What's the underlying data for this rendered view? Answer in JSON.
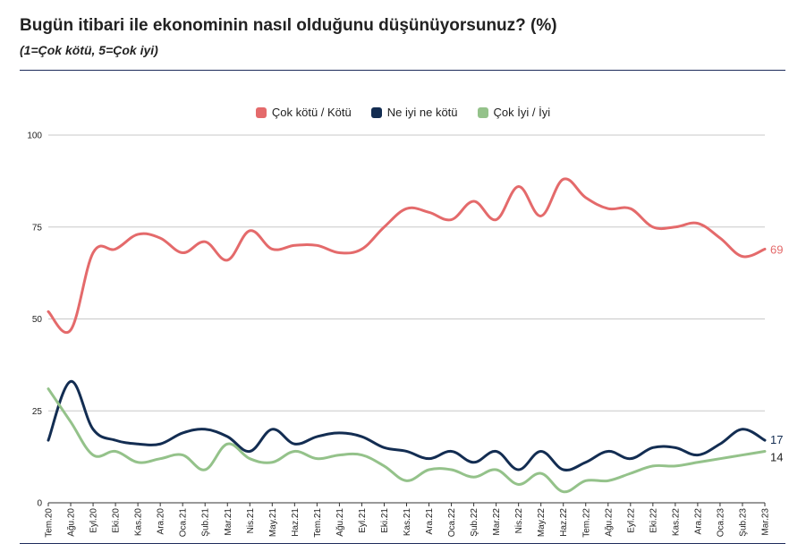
{
  "title": "Bugün itibari ile ekonominin nasıl olduğunu düşünüyorsunuz? (%)",
  "subtitle": "(1=Çok kötü, 5=Çok iyi)",
  "colors": {
    "series0": "#e46a6b",
    "series1": "#132d52",
    "series2": "#94c28a",
    "grid": "#c8c8c8",
    "rule": "#1c2a5a"
  },
  "chart_data": {
    "type": "line",
    "ylim": [
      0,
      100
    ],
    "yticks": [
      "0",
      "25",
      "50",
      "75",
      "100"
    ],
    "grid": true,
    "legend_position": "top-center",
    "categories": [
      "Tem.20",
      "Ağu.20",
      "Eyl.20",
      "Eki.20",
      "Kas.20",
      "Ara.20",
      "Oca.21",
      "Şub.21",
      "Mar.21",
      "Nis.21",
      "May.21",
      "Haz.21",
      "Tem.21",
      "Ağu.21",
      "Eyl.21",
      "Eki.21",
      "Kas.21",
      "Ara.21",
      "Oca.22",
      "Şub.22",
      "Mar.22",
      "Nis.22",
      "May.22",
      "Haz.22",
      "Tem.22",
      "Ağu.22",
      "Eyl.22",
      "Eki.22",
      "Kas.22",
      "Ara.22",
      "Oca.23",
      "Şub.23",
      "Mar.23"
    ],
    "series": [
      {
        "name": "Çok kötü / Kötü",
        "end_label": "69",
        "values": [
          52,
          47,
          68,
          69,
          73,
          72,
          68,
          71,
          66,
          74,
          69,
          70,
          70,
          68,
          69,
          75,
          80,
          79,
          77,
          82,
          77,
          86,
          78,
          88,
          83,
          80,
          80,
          75,
          75,
          76,
          72,
          67,
          69
        ]
      },
      {
        "name": "Ne iyi ne kötü",
        "end_label": "17",
        "values": [
          17,
          33,
          20,
          17,
          16,
          16,
          19,
          20,
          18,
          14,
          20,
          16,
          18,
          19,
          18,
          15,
          14,
          12,
          14,
          11,
          14,
          9,
          14,
          9,
          11,
          14,
          12,
          15,
          15,
          13,
          16,
          20,
          17
        ]
      },
      {
        "name": "Çok İyi / İyi",
        "end_label": "14",
        "values": [
          31,
          22,
          13,
          14,
          11,
          12,
          13,
          9,
          16,
          12,
          11,
          14,
          12,
          13,
          13,
          10,
          6,
          9,
          9,
          7,
          9,
          5,
          8,
          3,
          6,
          6,
          8,
          10,
          10,
          11,
          12,
          13,
          14
        ]
      }
    ]
  }
}
